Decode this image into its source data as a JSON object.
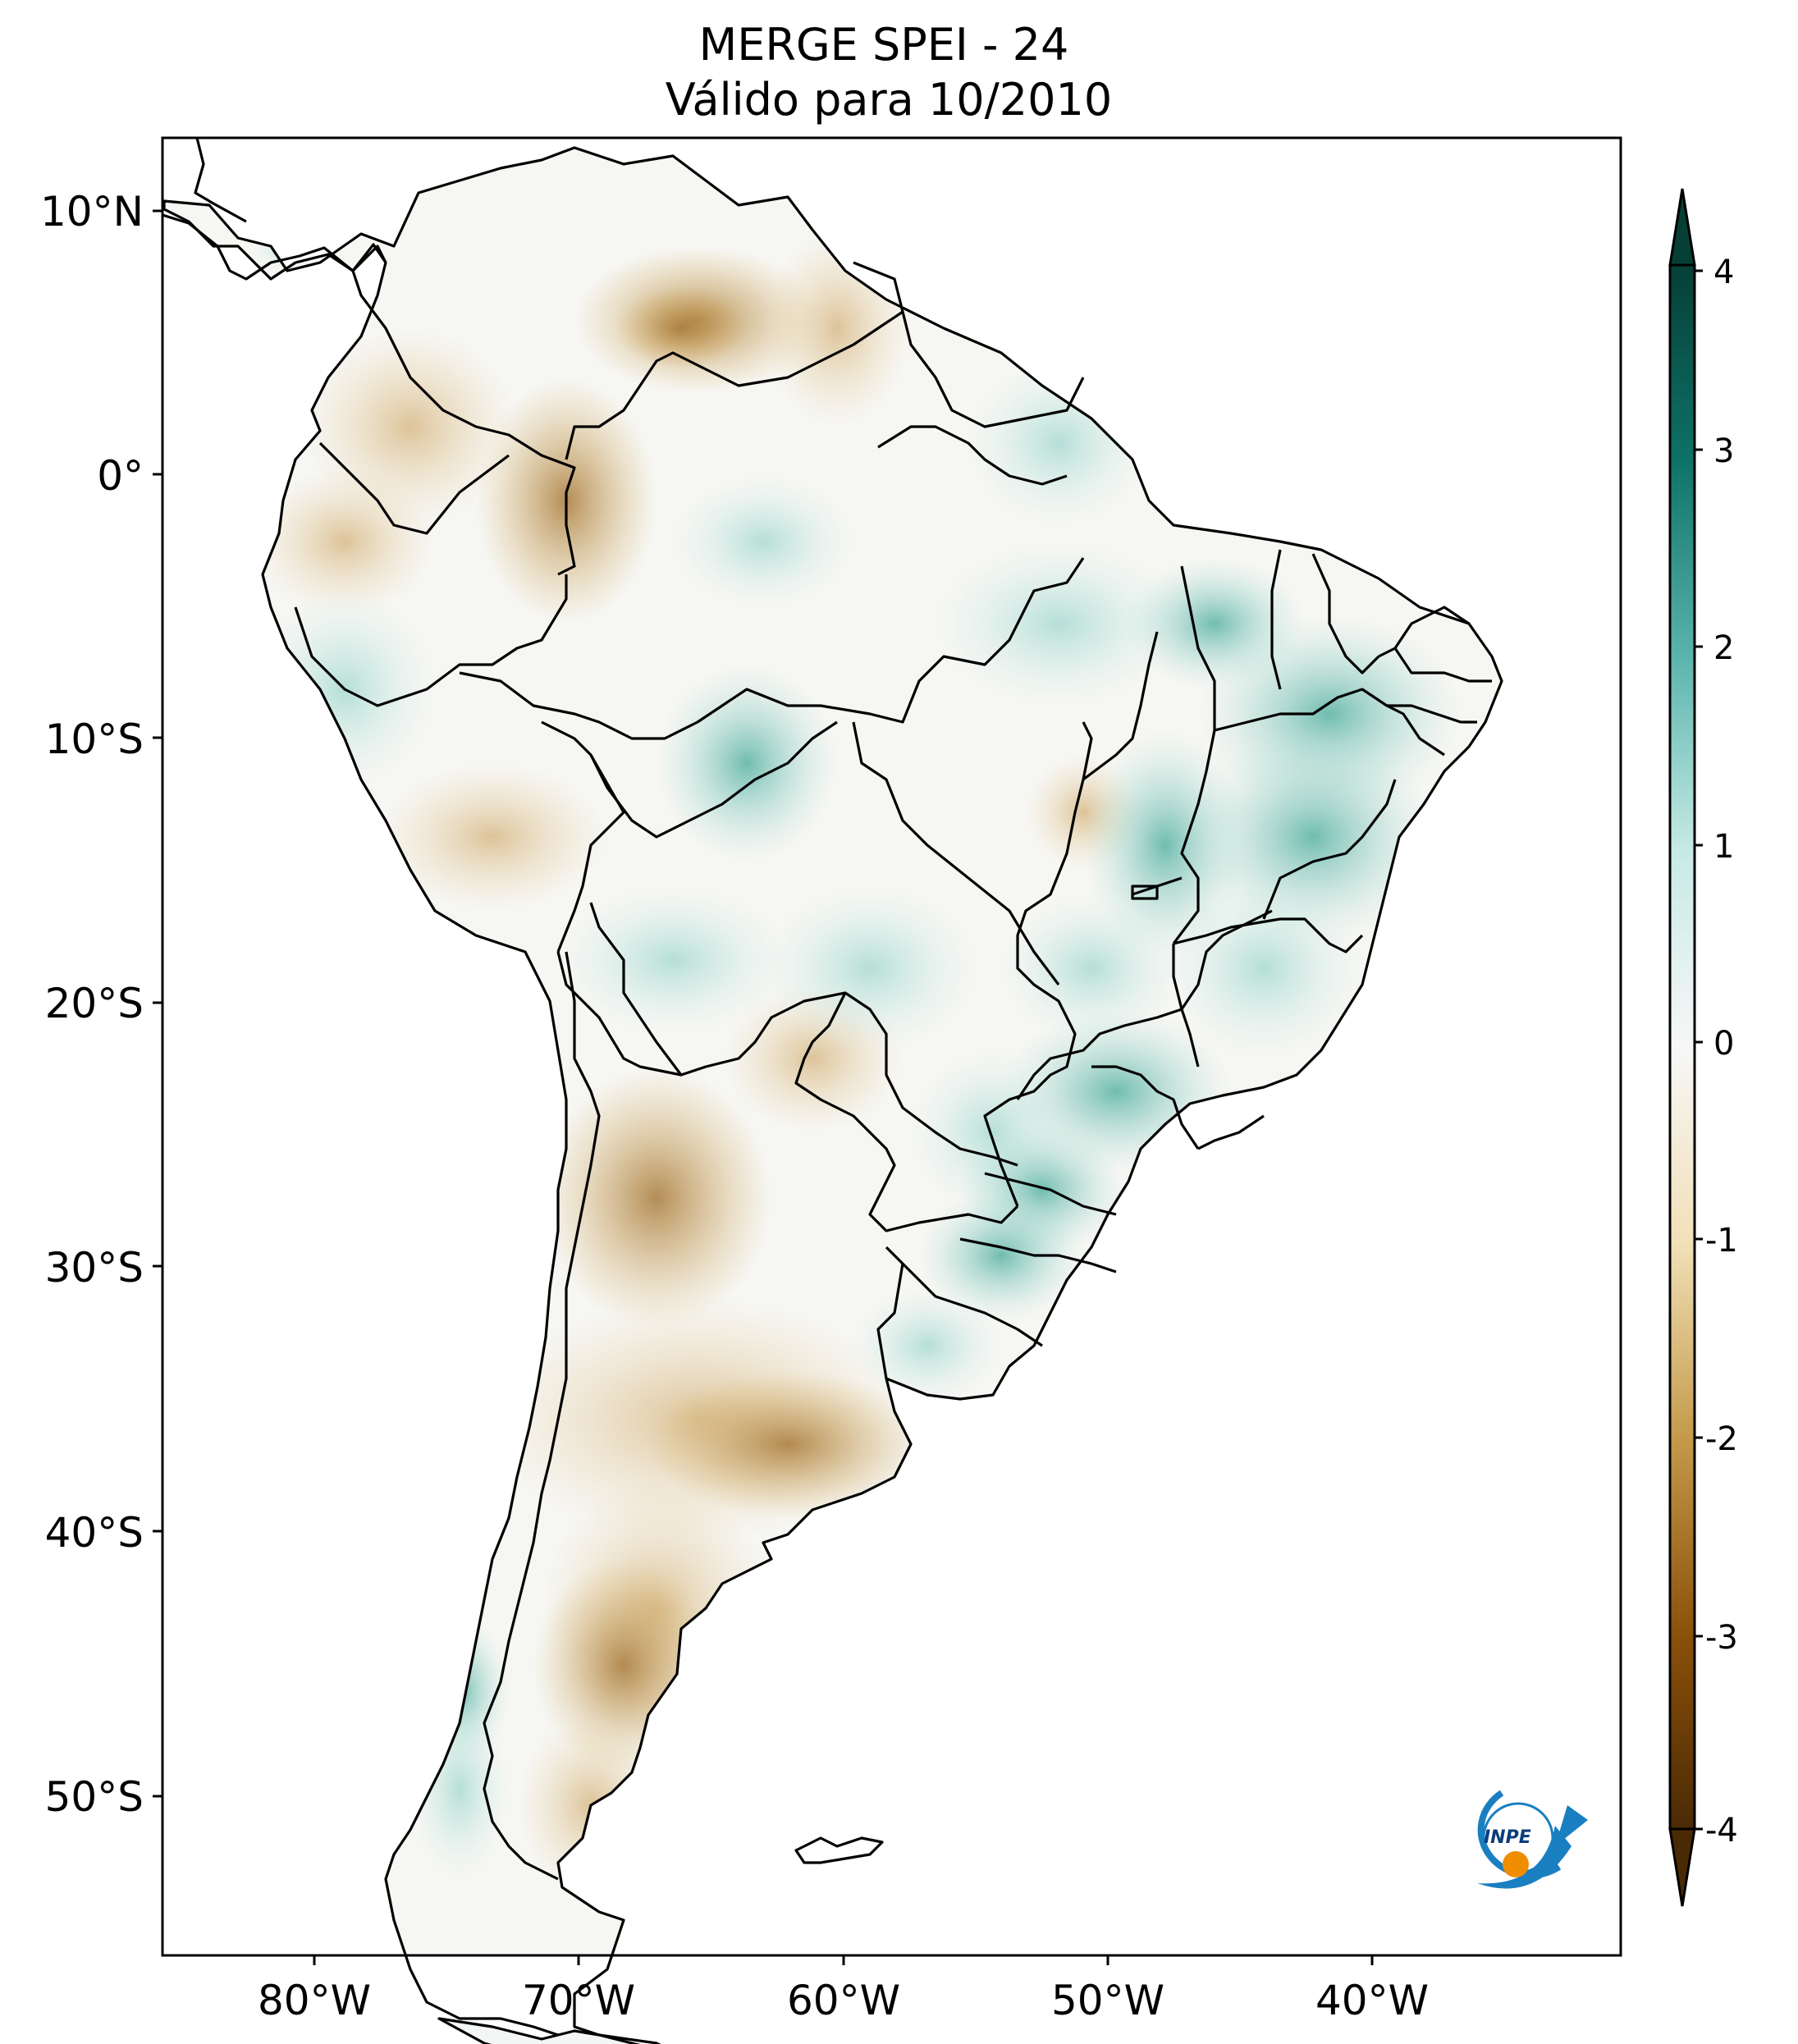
{
  "title": {
    "line1": "MERGE   SPEI - 24",
    "line2": "Válido para 10/2010"
  },
  "axes": {
    "lat_ticks": [
      "10°N",
      "0°",
      "10°S",
      "20°S",
      "30°S",
      "40°S",
      "50°S"
    ],
    "lon_ticks": [
      "80°W",
      "70°W",
      "60°W",
      "50°W",
      "40°W"
    ]
  },
  "colorbar": {
    "ticks": [
      "4",
      "3",
      "2",
      "1",
      "0",
      "-1",
      "-2",
      "-3",
      "-4"
    ],
    "colors": {
      "min": "#3d2203",
      "dry_strong": "#8c510a",
      "dry": "#d8b365",
      "dry_light": "#f6e8c3",
      "neutral": "#f5f5f5",
      "wet_light": "#c7eae5",
      "wet": "#5ab4ac",
      "wet_strong": "#01665e",
      "max": "#003c30"
    }
  },
  "logo": {
    "text": "INPE"
  }
}
